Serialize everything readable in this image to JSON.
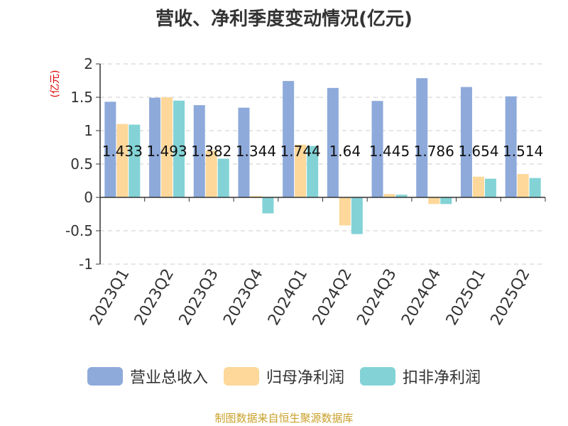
{
  "colors": {
    "revenue": "#8eaadb",
    "net_profit": "#fdd89a",
    "deducted_profit": "#83d3d6",
    "unit_label": "#e00000",
    "source": "#c9a02a"
  },
  "chart_data": {
    "type": "bar",
    "title": "营收、净利季度变动情况(亿元)",
    "ylabel": "(亿元)",
    "ylim": [
      -1,
      2
    ],
    "yticks": [
      "-1",
      "-0.5",
      "0",
      "0.5",
      "1",
      "1.5",
      "2"
    ],
    "grid": true,
    "legend_position": "bottom",
    "categories": [
      "2023Q1",
      "2023Q2",
      "2023Q3",
      "2023Q4",
      "2024Q1",
      "2024Q2",
      "2024Q3",
      "2024Q4",
      "2025Q1",
      "2025Q2"
    ],
    "series": [
      {
        "name": "营业总收入",
        "values": [
          1.433,
          1.493,
          1.382,
          1.344,
          1.744,
          1.64,
          1.445,
          1.786,
          1.654,
          1.514
        ],
        "labels": [
          "1.433",
          "1.493",
          "1.382",
          "1.344",
          "1.744",
          "1.64",
          "1.445",
          "1.786",
          "1.654",
          "1.514"
        ]
      },
      {
        "name": "归母净利润",
        "values": [
          1.1,
          1.5,
          0.7,
          0.02,
          0.79,
          -0.42,
          0.05,
          -0.1,
          0.31,
          0.35
        ]
      },
      {
        "name": "扣非净利润",
        "values": [
          1.09,
          1.45,
          0.58,
          -0.24,
          0.77,
          -0.55,
          0.04,
          -0.1,
          0.28,
          0.29
        ]
      }
    ]
  },
  "source_note": "制图数据来自恒生聚源数据库"
}
